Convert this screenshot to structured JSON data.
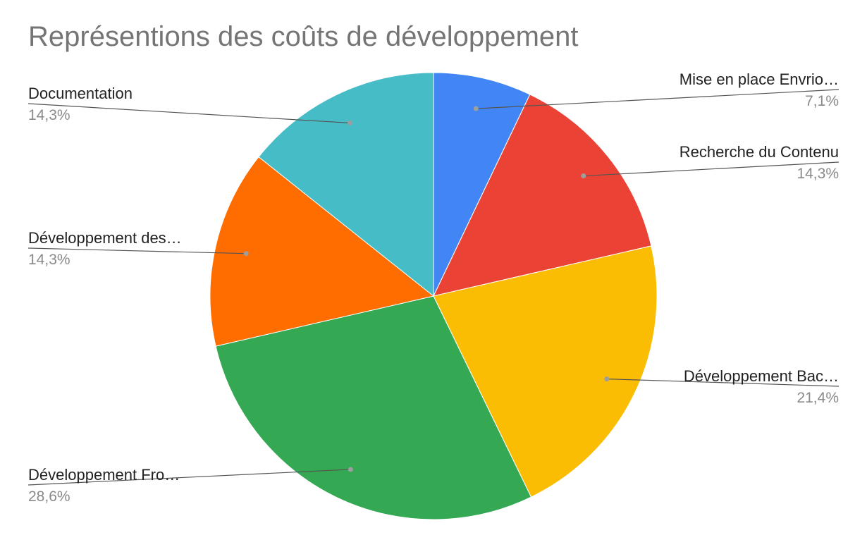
{
  "chart_data": {
    "type": "pie",
    "title": "Représentions des coûts de développement",
    "legend": "labels",
    "slices": [
      {
        "label": "Mise en place Envrio…",
        "value": 7.1,
        "pct_label": "7,1%",
        "color": "#4285f4"
      },
      {
        "label": "Recherche du Contenu",
        "value": 14.3,
        "pct_label": "14,3%",
        "color": "#ea4335"
      },
      {
        "label": "Développement Bac…",
        "value": 21.4,
        "pct_label": "21,4%",
        "color": "#fbbc04"
      },
      {
        "label": "Développement Fro…",
        "value": 28.6,
        "pct_label": "28,6%",
        "color": "#34a853"
      },
      {
        "label": "Développement des…",
        "value": 14.3,
        "pct_label": "14,3%",
        "color": "#ff6d01"
      },
      {
        "label": "Documentation",
        "value": 14.3,
        "pct_label": "14,3%",
        "color": "#46bdc6"
      }
    ]
  }
}
